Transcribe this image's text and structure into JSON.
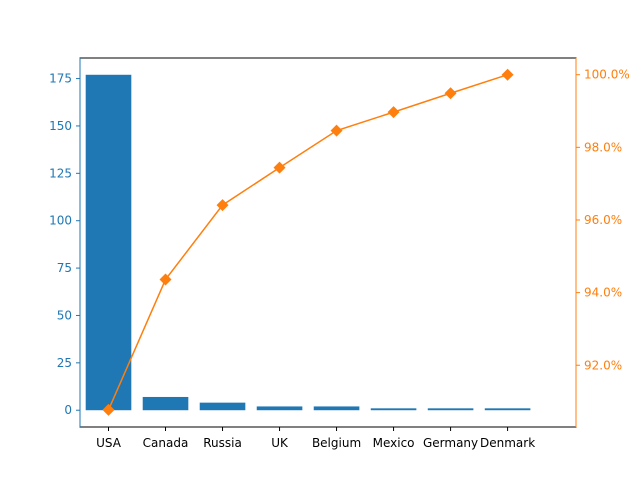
{
  "chart_data": {
    "type": "bar",
    "title": "",
    "xlabel": "",
    "ylabel": "",
    "categories": [
      "USA",
      "Canada",
      "Russia",
      "UK",
      "Belgium",
      "Mexico",
      "Germany",
      "Denmark"
    ],
    "series": [
      {
        "type": "bar",
        "axis": "left",
        "values": [
          177,
          7,
          4,
          2,
          2,
          1,
          1,
          1
        ],
        "color": "#1f77b4"
      },
      {
        "type": "line",
        "axis": "right",
        "values": [
          90.77,
          94.36,
          96.41,
          97.44,
          98.46,
          98.97,
          99.49,
          100.0
        ],
        "color": "#ff7f0e",
        "marker": "diamond"
      }
    ],
    "y_left": {
      "lim": [
        -8.85,
        185.85
      ],
      "ticks": [
        0,
        25,
        50,
        75,
        100,
        125,
        150,
        175
      ],
      "tick_labels": [
        "0",
        "25",
        "50",
        "75",
        "100",
        "125",
        "150",
        "175"
      ],
      "color": "#1f77b4"
    },
    "y_right": {
      "lim": [
        90.3,
        100.46
      ],
      "ticks": [
        92,
        94,
        96,
        98,
        100
      ],
      "tick_labels": [
        "92.0%",
        "94.0%",
        "96.0%",
        "98.0%",
        "100.0%"
      ],
      "color": "#ff7f0e"
    },
    "grid": false,
    "legend": "none"
  }
}
